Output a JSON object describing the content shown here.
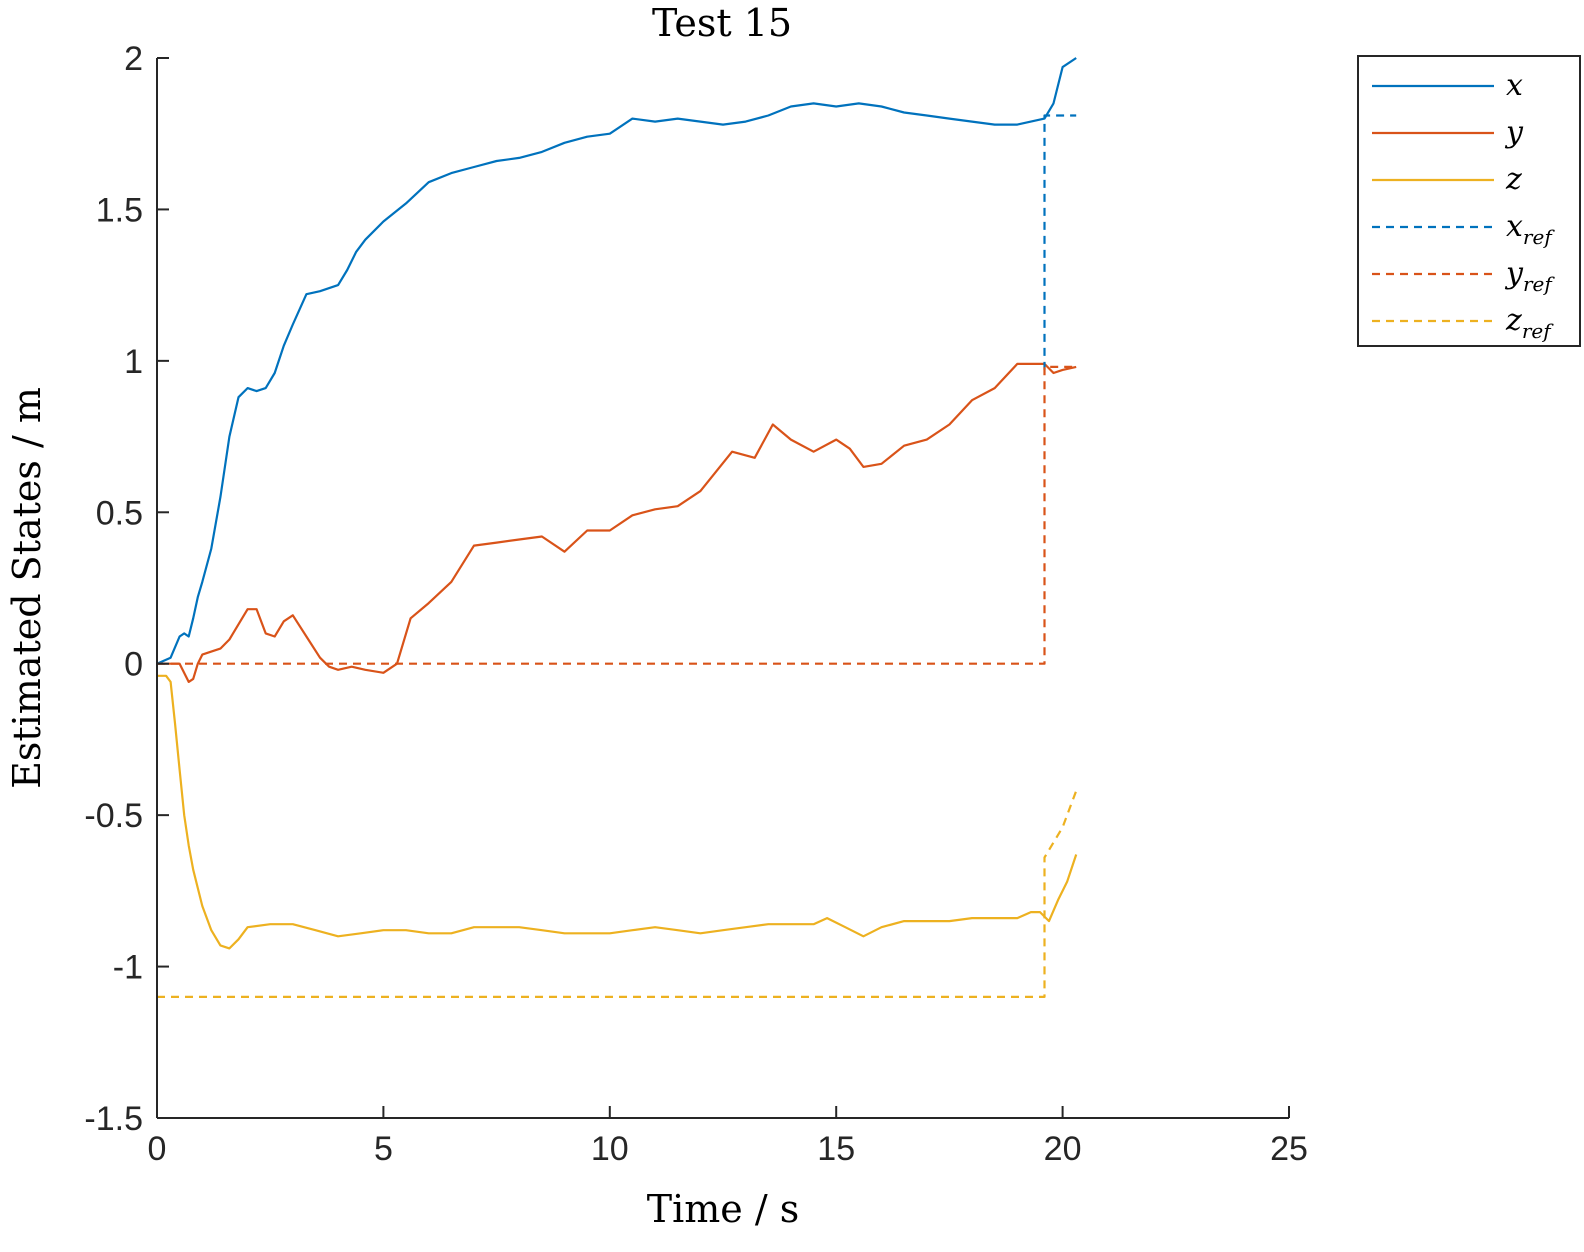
{
  "chart_data": {
    "type": "line",
    "title": "Test 15",
    "xlabel": "Time / s",
    "ylabel": "Estimated States / m",
    "xlim": [
      0,
      25
    ],
    "ylim": [
      -1.5,
      2
    ],
    "xticks": [
      0,
      5,
      10,
      15,
      20,
      25
    ],
    "xtick_labels": [
      "0",
      "5",
      "10",
      "15",
      "20",
      "25"
    ],
    "yticks": [
      2,
      1.5,
      1,
      0.5,
      0,
      -0.5,
      -1,
      -1.5
    ],
    "ytick_labels": [
      "2",
      "1.5",
      "1",
      "0.5",
      "0",
      "-0.5",
      "-1",
      "-1.5"
    ],
    "grid": false,
    "legend_position": "outside-top-right",
    "series": [
      {
        "name": "x",
        "sub": "",
        "color": "#0072BD",
        "dash": false,
        "x": [
          0,
          0.3,
          0.5,
          0.6,
          0.7,
          0.8,
          0.9,
          1.0,
          1.2,
          1.4,
          1.6,
          1.8,
          2.0,
          2.2,
          2.4,
          2.6,
          2.8,
          3.0,
          3.3,
          3.6,
          4.0,
          4.2,
          4.4,
          4.6,
          5.0,
          5.5,
          6.0,
          6.5,
          7.0,
          7.5,
          8.0,
          8.5,
          9.0,
          9.5,
          10.0,
          10.5,
          11.0,
          11.5,
          12.0,
          12.5,
          13.0,
          13.5,
          14.0,
          14.5,
          15.0,
          15.5,
          16.0,
          16.5,
          17.0,
          17.5,
          18.0,
          18.5,
          19.0,
          19.3,
          19.6,
          19.8,
          20.0,
          20.3
        ],
        "y": [
          0,
          0.02,
          0.09,
          0.1,
          0.09,
          0.15,
          0.22,
          0.27,
          0.38,
          0.55,
          0.75,
          0.88,
          0.91,
          0.9,
          0.91,
          0.96,
          1.05,
          1.12,
          1.22,
          1.23,
          1.25,
          1.3,
          1.36,
          1.4,
          1.46,
          1.52,
          1.59,
          1.62,
          1.64,
          1.66,
          1.67,
          1.69,
          1.72,
          1.74,
          1.75,
          1.8,
          1.79,
          1.8,
          1.79,
          1.78,
          1.79,
          1.81,
          1.84,
          1.85,
          1.84,
          1.85,
          1.84,
          1.82,
          1.81,
          1.8,
          1.79,
          1.78,
          1.78,
          1.79,
          1.8,
          1.85,
          1.97,
          2.0
        ]
      },
      {
        "name": "y",
        "sub": "",
        "color": "#D95319",
        "dash": false,
        "x": [
          0,
          0.3,
          0.5,
          0.7,
          0.8,
          0.9,
          1.0,
          1.2,
          1.4,
          1.6,
          1.8,
          2.0,
          2.2,
          2.4,
          2.6,
          2.8,
          3.0,
          3.3,
          3.6,
          3.8,
          4.0,
          4.3,
          4.6,
          5.0,
          5.3,
          5.6,
          6.0,
          6.5,
          7.0,
          7.5,
          8.0,
          8.5,
          9.0,
          9.5,
          10.0,
          10.5,
          11.0,
          11.5,
          12.0,
          12.7,
          13.2,
          13.6,
          14.0,
          14.5,
          15.0,
          15.3,
          15.6,
          16.0,
          16.5,
          17.0,
          17.5,
          18.0,
          18.5,
          19.0,
          19.3,
          19.6,
          19.8,
          20.0,
          20.3
        ],
        "y": [
          0,
          0,
          0,
          -0.06,
          -0.05,
          0.0,
          0.03,
          0.04,
          0.05,
          0.08,
          0.13,
          0.18,
          0.18,
          0.1,
          0.09,
          0.14,
          0.16,
          0.09,
          0.02,
          -0.01,
          -0.02,
          -0.01,
          -0.02,
          -0.03,
          0.0,
          0.15,
          0.2,
          0.27,
          0.39,
          0.4,
          0.41,
          0.42,
          0.37,
          0.44,
          0.44,
          0.49,
          0.51,
          0.52,
          0.57,
          0.7,
          0.68,
          0.79,
          0.74,
          0.7,
          0.74,
          0.71,
          0.65,
          0.66,
          0.72,
          0.74,
          0.79,
          0.87,
          0.91,
          0.99,
          0.99,
          0.99,
          0.96,
          0.97,
          0.98
        ]
      },
      {
        "name": "z",
        "sub": "",
        "color": "#EDB120",
        "dash": false,
        "x": [
          0,
          0.2,
          0.3,
          0.4,
          0.5,
          0.6,
          0.7,
          0.8,
          1.0,
          1.2,
          1.4,
          1.6,
          1.8,
          2.0,
          2.5,
          3.0,
          3.5,
          4.0,
          4.5,
          5.0,
          5.5,
          6.0,
          6.5,
          7.0,
          7.5,
          8.0,
          8.5,
          9.0,
          9.5,
          10.0,
          10.5,
          11.0,
          11.5,
          12.0,
          12.5,
          13.0,
          13.5,
          14.0,
          14.5,
          14.8,
          15.2,
          15.6,
          16.0,
          16.5,
          17.0,
          17.5,
          18.0,
          18.5,
          19.0,
          19.3,
          19.5,
          19.7,
          19.9,
          20.1,
          20.3
        ],
        "y": [
          -0.04,
          -0.04,
          -0.06,
          -0.2,
          -0.35,
          -0.5,
          -0.6,
          -0.68,
          -0.8,
          -0.88,
          -0.93,
          -0.94,
          -0.91,
          -0.87,
          -0.86,
          -0.86,
          -0.88,
          -0.9,
          -0.89,
          -0.88,
          -0.88,
          -0.89,
          -0.89,
          -0.87,
          -0.87,
          -0.87,
          -0.88,
          -0.89,
          -0.89,
          -0.89,
          -0.88,
          -0.87,
          -0.88,
          -0.89,
          -0.88,
          -0.87,
          -0.86,
          -0.86,
          -0.86,
          -0.84,
          -0.87,
          -0.9,
          -0.87,
          -0.85,
          -0.85,
          -0.85,
          -0.84,
          -0.84,
          -0.84,
          -0.82,
          -0.82,
          -0.85,
          -0.78,
          -0.72,
          -0.63
        ]
      },
      {
        "name": "x",
        "sub": "ref",
        "color": "#0072BD",
        "dash": true,
        "x": [
          19.6,
          19.6,
          20.3
        ],
        "y": [
          0.97,
          1.81,
          1.81
        ]
      },
      {
        "name": "y",
        "sub": "ref",
        "color": "#D95319",
        "dash": true,
        "x": [
          0,
          19.6,
          19.6,
          20.3
        ],
        "y": [
          0,
          0,
          0.98,
          0.98
        ]
      },
      {
        "name": "z",
        "sub": "ref",
        "color": "#EDB120",
        "dash": true,
        "x": [
          0,
          19.6,
          19.6,
          20.0,
          20.3
        ],
        "y": [
          -1.1,
          -1.1,
          -0.64,
          -0.54,
          -0.42
        ]
      }
    ]
  }
}
